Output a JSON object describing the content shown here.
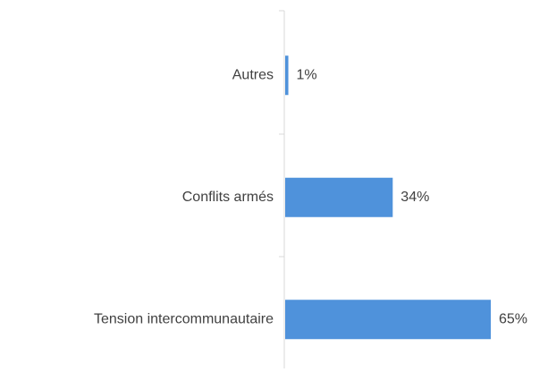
{
  "chart_data": {
    "type": "hbar",
    "categories": [
      "Autres",
      "Conflits armés",
      "Tension intercommunautaire"
    ],
    "values": [
      1,
      34,
      65
    ],
    "value_labels": [
      "1%",
      "34%",
      "65%"
    ],
    "color": "#4f92db"
  }
}
